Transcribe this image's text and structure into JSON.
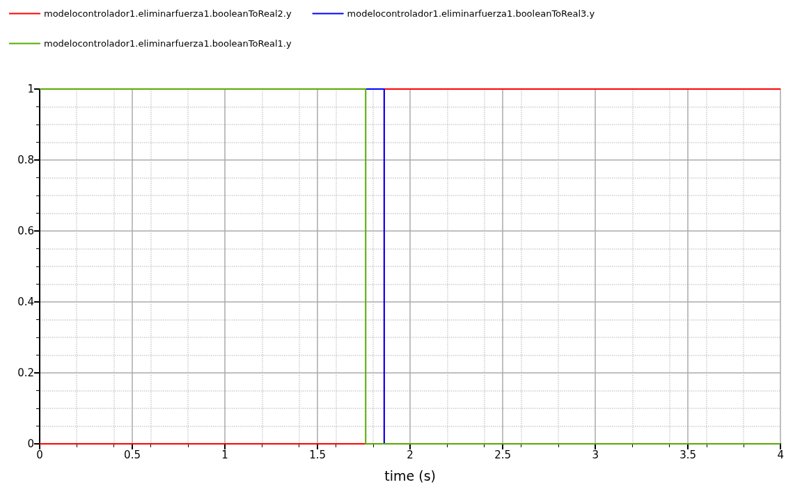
{
  "chart_data": {
    "type": "step",
    "xlabel": "time (s)",
    "xlim": [
      0,
      4
    ],
    "xticks": [
      0,
      0.5,
      1,
      1.5,
      2,
      2.5,
      3,
      3.5,
      4
    ],
    "ylim": [
      0,
      1
    ],
    "yticks": [
      0,
      0.2,
      0.4,
      0.6,
      0.8,
      1
    ],
    "grid": true,
    "legend": "top left",
    "marker": "none",
    "line_style": "solid",
    "series": [
      {
        "name": "modelocontrolador1.eliminarfuerza1.booleanToReal2.y",
        "color": "#ff0000",
        "x": [
          0,
          1.86,
          4
        ],
        "values": [
          0,
          1,
          1
        ]
      },
      {
        "name": "modelocontrolador1.eliminarfuerza1.booleanToReal3.y",
        "color": "#0000ff",
        "x": [
          1.76,
          1.86
        ],
        "values": [
          1,
          0
        ]
      },
      {
        "name": "modelocontrolador1.eliminarfuerza1.booleanToReal1.y",
        "color": "#55aa00",
        "x": [
          0,
          1.76,
          4
        ],
        "values": [
          1,
          0,
          0
        ]
      }
    ]
  }
}
